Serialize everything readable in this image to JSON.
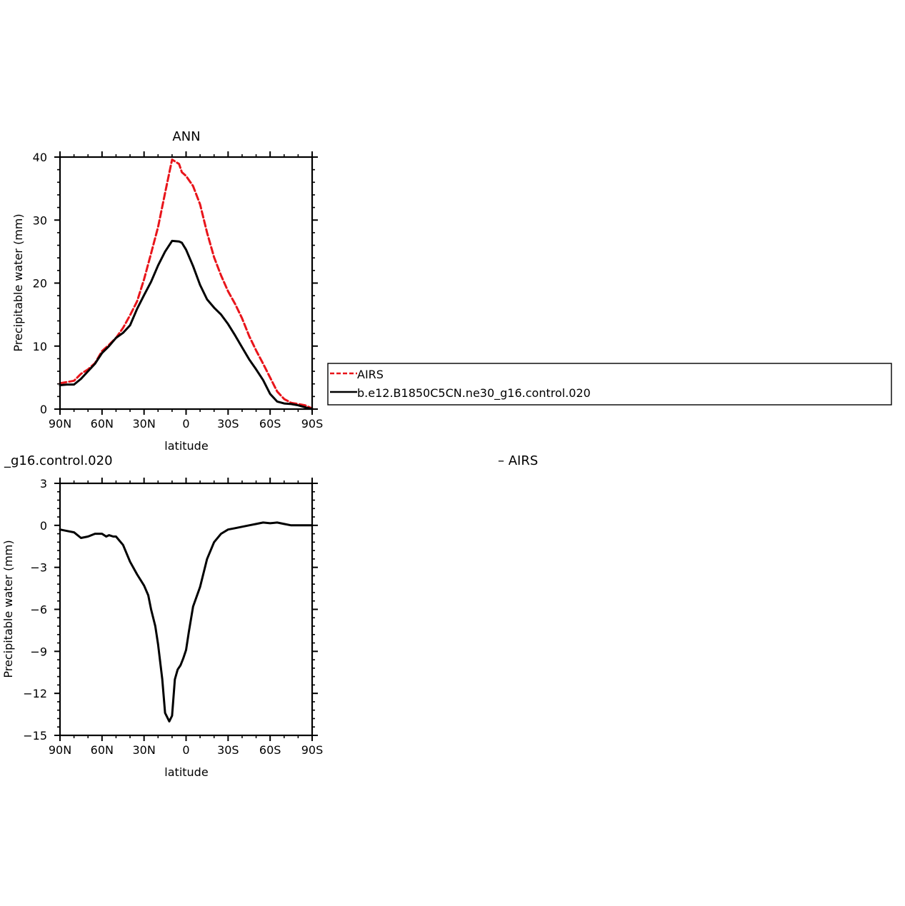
{
  "colors": {
    "obs": "#e8141a",
    "model": "#000000",
    "diff": "#000000"
  },
  "top_panel": {
    "title": "ANN",
    "xlabel": "latitude",
    "ylabel": "Precipitable water (mm)",
    "legend": {
      "entries": [
        "AIRS",
        "b.e12.B1850C5CN.ne30_g16.control.020"
      ]
    }
  },
  "bottom_panel": {
    "title_left": "_g16.control.020",
    "title_right": "– AIRS",
    "xlabel": "latitude",
    "ylabel": "Precipitable water (mm)"
  },
  "chart_data": [
    {
      "type": "line",
      "title": "ANN",
      "xlabel": "latitude",
      "ylabel": "Precipitable water (mm)",
      "xlim": [
        90,
        -90
      ],
      "ylim": [
        0,
        40
      ],
      "xticks": [
        90,
        60,
        30,
        0,
        -30,
        -60,
        -90
      ],
      "xtick_labels": [
        "90N",
        "60N",
        "30N",
        "0",
        "30S",
        "60S",
        "90S"
      ],
      "yticks": [
        0,
        10,
        20,
        30,
        40
      ],
      "ytick_labels": [
        "0",
        "10",
        "20",
        "30",
        "40"
      ],
      "legend_position": "right",
      "grid": false,
      "series": [
        {
          "name": "AIRS",
          "style": "dashed",
          "color": "#e8141a",
          "x": [
            90,
            85,
            80,
            75,
            70,
            65,
            60,
            55,
            50,
            45,
            40,
            35,
            30,
            25,
            20,
            15,
            10,
            5,
            3,
            0,
            -5,
            -10,
            -15,
            -20,
            -25,
            -30,
            -35,
            -40,
            -45,
            -50,
            -55,
            -60,
            -65,
            -70,
            -75,
            -80,
            -85,
            -90
          ],
          "y": [
            4.1,
            4.3,
            4.5,
            5.6,
            6.3,
            7.3,
            9.2,
            10.2,
            11.3,
            12.9,
            14.9,
            17.1,
            20.6,
            24.7,
            28.9,
            34.3,
            39.6,
            38.9,
            37.6,
            37.0,
            35.4,
            32.5,
            28.0,
            24.1,
            21.2,
            18.7,
            16.7,
            14.4,
            11.6,
            9.3,
            7.2,
            5.0,
            2.8,
            1.6,
            1.0,
            0.8,
            0.6,
            0.1
          ]
        },
        {
          "name": "b.e12.B1850C5CN.ne30_g16.control.020",
          "style": "solid",
          "color": "#000000",
          "x": [
            90,
            85,
            80,
            75,
            70,
            65,
            60,
            55,
            50,
            45,
            40,
            35,
            30,
            25,
            20,
            15,
            10,
            5,
            3,
            0,
            -5,
            -10,
            -15,
            -20,
            -25,
            -30,
            -35,
            -40,
            -45,
            -50,
            -55,
            -60,
            -65,
            -70,
            -75,
            -80,
            -85,
            -90
          ],
          "y": [
            3.8,
            3.9,
            3.9,
            4.8,
            6.0,
            7.2,
            8.9,
            10.0,
            11.3,
            12.1,
            13.3,
            15.9,
            18.1,
            20.2,
            22.8,
            25.0,
            26.7,
            26.6,
            26.4,
            25.3,
            22.7,
            19.7,
            17.4,
            16.1,
            15.0,
            13.5,
            11.7,
            9.8,
            7.9,
            6.3,
            4.6,
            2.4,
            1.2,
            0.9,
            0.8,
            0.6,
            0.3,
            0.0
          ]
        }
      ]
    },
    {
      "type": "line",
      "xlabel": "latitude",
      "ylabel": "Precipitable water (mm)",
      "xlim": [
        90,
        -90
      ],
      "ylim": [
        -15,
        3
      ],
      "xticks": [
        90,
        60,
        30,
        0,
        -30,
        -60,
        -90
      ],
      "xtick_labels": [
        "90N",
        "60N",
        "30N",
        "0",
        "30S",
        "60S",
        "90S"
      ],
      "yticks": [
        -15,
        -12,
        -9,
        -6,
        -3,
        0,
        3
      ],
      "ytick_labels": [
        "−15",
        "−12",
        "−9",
        "−6",
        "−3",
        "0",
        "3"
      ],
      "grid": false,
      "series": [
        {
          "style": "solid",
          "color": "#000000",
          "x": [
            90,
            85,
            80,
            75,
            70,
            65,
            60,
            57,
            55,
            52,
            50,
            45,
            40,
            35,
            30,
            27,
            25,
            22,
            20,
            17,
            15,
            12,
            10,
            8,
            6,
            4,
            2,
            0,
            -2,
            -5,
            -10,
            -15,
            -20,
            -25,
            -30,
            -35,
            -40,
            -45,
            -50,
            -55,
            -60,
            -65,
            -70,
            -75,
            -80,
            -85,
            -90
          ],
          "y": [
            -0.3,
            -0.4,
            -0.5,
            -0.9,
            -0.8,
            -0.6,
            -0.6,
            -0.8,
            -0.7,
            -0.8,
            -0.8,
            -1.4,
            -2.6,
            -3.5,
            -4.3,
            -5.0,
            -6.0,
            -7.2,
            -8.5,
            -11.0,
            -13.4,
            -14.0,
            -13.6,
            -11.0,
            -10.3,
            -10.0,
            -9.5,
            -8.9,
            -7.6,
            -5.8,
            -4.4,
            -2.4,
            -1.2,
            -0.6,
            -0.3,
            -0.2,
            -0.1,
            0.0,
            0.1,
            0.2,
            0.15,
            0.2,
            0.1,
            0.0,
            0.0,
            0.0,
            0.0
          ]
        }
      ]
    }
  ]
}
